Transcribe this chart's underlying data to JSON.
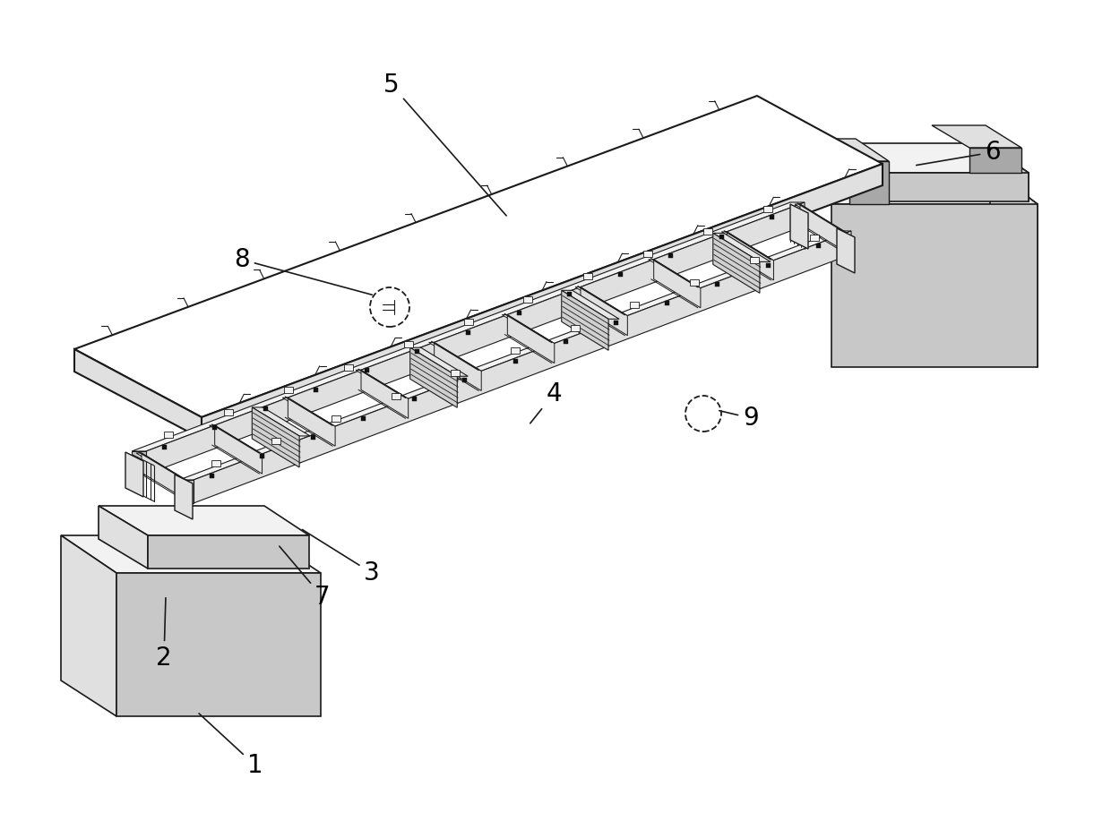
{
  "background_color": "#ffffff",
  "line_color": "#1a1a1a",
  "fill_white": "#ffffff",
  "fill_light": "#f2f2f2",
  "fill_medium": "#e0e0e0",
  "fill_dark": "#c8c8c8",
  "fill_very_dark": "#a8a8a8",
  "fill_steel_top": "#e8e8e8",
  "fill_steel_side": "#d0d0d0",
  "figsize": [
    12.4,
    9.17
  ],
  "dpi": 100,
  "label_fontsize": 20
}
